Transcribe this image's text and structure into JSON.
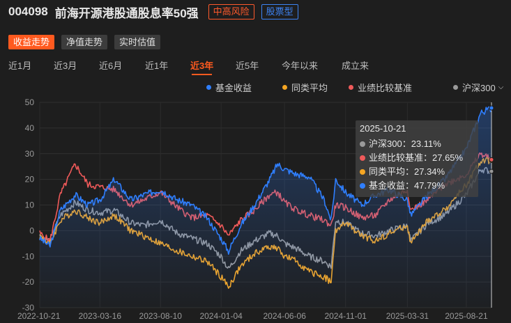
{
  "header": {
    "code": "004098",
    "name": "前海开源港股通股息率50强",
    "risk_tag": "中高风险",
    "type_tag": "股票型"
  },
  "view_tabs": [
    {
      "label": "收益走势",
      "active": true
    },
    {
      "label": "净值走势",
      "active": false
    },
    {
      "label": "实时估值",
      "active": false
    }
  ],
  "period_tabs": [
    {
      "label": "近1月",
      "active": false
    },
    {
      "label": "近3月",
      "active": false
    },
    {
      "label": "近6月",
      "active": false
    },
    {
      "label": "近1年",
      "active": false
    },
    {
      "label": "近3年",
      "active": true
    },
    {
      "label": "近5年",
      "active": false
    },
    {
      "label": "今年以来",
      "active": false
    },
    {
      "label": "成立来",
      "active": false
    }
  ],
  "legend": [
    {
      "label": "基金收益",
      "color": "#2f7fff"
    },
    {
      "label": "同类平均",
      "color": "#f5a623"
    },
    {
      "label": "业绩比较基准",
      "color": "#f05a5a"
    },
    {
      "label": "沪深300",
      "color": "#9a9a9a",
      "has_dropdown": true,
      "dropdown_icon": "chevron-down-icon"
    }
  ],
  "tooltip": {
    "date": "2025-10-21",
    "rows": [
      {
        "label": "沪深300：23.11%",
        "color": "#9a9a9a"
      },
      {
        "label": "业绩比较基准：27.65%",
        "color": "#f05a5a"
      },
      {
        "label": "同类平均：27.34%",
        "color": "#f5a623"
      },
      {
        "label": "基金收益：47.79%",
        "color": "#2f7fff"
      }
    ]
  },
  "chart_data": {
    "type": "line",
    "x_ticks": [
      "2022-10-21",
      "2023-03-16",
      "2023-08-10",
      "2024-01-04",
      "2024-06-06",
      "2024-11-01",
      "2025-03-31",
      "2025-08-21"
    ],
    "y_ticks": [
      50,
      40,
      30,
      20,
      10,
      0,
      -10,
      -20,
      -30
    ],
    "ylim": [
      -30,
      50
    ],
    "x_range": [
      "2022-10-21",
      "2025-10-21"
    ],
    "grid": true,
    "series": [
      {
        "name": "基金收益",
        "color": "#2f7fff",
        "area": true,
        "x": [
          "2022-10-21",
          "2022-11-15",
          "2022-12-10",
          "2023-01-15",
          "2023-02-15",
          "2023-03-16",
          "2023-04-20",
          "2023-05-30",
          "2023-06-30",
          "2023-08-10",
          "2023-09-20",
          "2023-10-25",
          "2023-12-01",
          "2024-01-04",
          "2024-01-22",
          "2024-02-20",
          "2024-03-25",
          "2024-05-01",
          "2024-05-20",
          "2024-06-06",
          "2024-07-05",
          "2024-08-05",
          "2024-09-10",
          "2024-09-27",
          "2024-10-08",
          "2024-11-01",
          "2024-12-10",
          "2025-01-13",
          "2025-02-15",
          "2025-03-31",
          "2025-04-08",
          "2025-05-20",
          "2025-06-30",
          "2025-08-21",
          "2025-09-25",
          "2025-10-21"
        ],
        "y": [
          -3,
          -6,
          8,
          14,
          10,
          12,
          20,
          12,
          14,
          16,
          12,
          10,
          5,
          -3,
          -8,
          2,
          10,
          20,
          26,
          24,
          22,
          21,
          12,
          4,
          20,
          15,
          10,
          14,
          16,
          12,
          6,
          14,
          20,
          32,
          46,
          47.79
        ]
      },
      {
        "name": "同类平均",
        "color": "#f5a623",
        "x": [
          "2022-10-21",
          "2022-11-15",
          "2022-12-10",
          "2023-01-15",
          "2023-02-15",
          "2023-03-16",
          "2023-04-20",
          "2023-05-30",
          "2023-06-30",
          "2023-08-10",
          "2023-09-20",
          "2023-10-25",
          "2023-12-01",
          "2024-01-04",
          "2024-01-22",
          "2024-02-20",
          "2024-03-25",
          "2024-05-01",
          "2024-05-20",
          "2024-06-06",
          "2024-07-05",
          "2024-08-05",
          "2024-09-10",
          "2024-09-27",
          "2024-10-08",
          "2024-11-01",
          "2024-12-10",
          "2025-01-13",
          "2025-02-15",
          "2025-03-31",
          "2025-04-08",
          "2025-05-20",
          "2025-06-30",
          "2025-08-21",
          "2025-09-25",
          "2025-10-21"
        ],
        "y": [
          -2,
          -5,
          4,
          8,
          5,
          3,
          6,
          0,
          -2,
          -5,
          -8,
          -10,
          -12,
          -18,
          -22,
          -14,
          -9,
          -6,
          -7,
          -10,
          -12,
          -16,
          -18,
          -20,
          0,
          3,
          -2,
          -4,
          -1,
          2,
          -5,
          4,
          8,
          18,
          27,
          27.34
        ]
      },
      {
        "name": "业绩比较基准",
        "color": "#f05a5a",
        "x": [
          "2022-10-21",
          "2022-11-15",
          "2022-12-10",
          "2023-01-15",
          "2023-02-15",
          "2023-03-16",
          "2023-04-20",
          "2023-05-30",
          "2023-06-30",
          "2023-08-10",
          "2023-09-20",
          "2023-10-25",
          "2023-12-01",
          "2024-01-04",
          "2024-01-22",
          "2024-02-20",
          "2024-03-25",
          "2024-05-01",
          "2024-05-20",
          "2024-06-06",
          "2024-07-05",
          "2024-08-05",
          "2024-09-10",
          "2024-09-27",
          "2024-10-08",
          "2024-11-01",
          "2024-12-10",
          "2025-01-13",
          "2025-02-15",
          "2025-03-31",
          "2025-04-08",
          "2025-05-20",
          "2025-06-30",
          "2025-08-21",
          "2025-09-25",
          "2025-10-21"
        ],
        "y": [
          -1,
          -4,
          14,
          26,
          18,
          17,
          16,
          10,
          12,
          15,
          9,
          5,
          6,
          2,
          -2,
          4,
          8,
          14,
          15,
          11,
          8,
          6,
          4,
          2,
          10,
          9,
          5,
          6,
          12,
          16,
          8,
          12,
          18,
          22,
          30,
          27.65
        ]
      },
      {
        "name": "沪深300",
        "color": "#9a9a9a",
        "x": [
          "2022-10-21",
          "2022-11-15",
          "2022-12-10",
          "2023-01-15",
          "2023-02-15",
          "2023-03-16",
          "2023-04-20",
          "2023-05-30",
          "2023-06-30",
          "2023-08-10",
          "2023-09-20",
          "2023-10-25",
          "2023-12-01",
          "2024-01-04",
          "2024-01-22",
          "2024-02-20",
          "2024-03-25",
          "2024-05-01",
          "2024-05-20",
          "2024-06-06",
          "2024-07-05",
          "2024-08-05",
          "2024-09-10",
          "2024-09-27",
          "2024-10-08",
          "2024-11-01",
          "2024-12-10",
          "2025-01-13",
          "2025-02-15",
          "2025-03-31",
          "2025-04-08",
          "2025-05-20",
          "2025-06-30",
          "2025-08-21",
          "2025-09-25",
          "2025-10-21"
        ],
        "y": [
          -2,
          -4,
          6,
          11,
          8,
          7,
          8,
          3,
          2,
          4,
          -1,
          -3,
          -5,
          -10,
          -15,
          -8,
          -4,
          -1,
          -2,
          -5,
          -7,
          -10,
          -12,
          -14,
          4,
          3,
          -1,
          -2,
          0,
          2,
          -4,
          3,
          6,
          14,
          24,
          23.11
        ]
      }
    ]
  }
}
